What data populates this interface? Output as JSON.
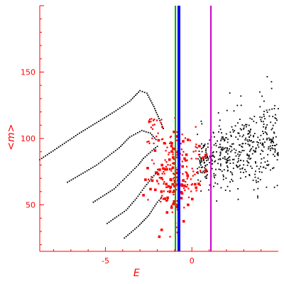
{
  "chart_data": {
    "type": "scatter",
    "title": "",
    "xlabel": "E",
    "ylabel": "<m>",
    "xlim": [
      -8.8,
      5.0
    ],
    "ylim": [
      15,
      200
    ],
    "x_ticks": [
      -5,
      0
    ],
    "y_ticks": [
      50,
      100,
      150
    ],
    "x_tick_labels": [
      "-5",
      "0"
    ],
    "y_tick_labels": [
      "50",
      "100",
      "150"
    ],
    "grid": false,
    "legend": "none",
    "colors": {
      "axes": "#ff0000",
      "black_points": "#000000",
      "red_points": "#ff0000",
      "vline_green": "#00aa00",
      "vline_blue": "#0000ff",
      "vline_magenta": "#cc00cc"
    },
    "vertical_lines": [
      {
        "x": -0.95,
        "color": "#00aa00"
      },
      {
        "x": -0.75,
        "color": "#0000ff"
      },
      {
        "x": 1.1,
        "color": "#cc00cc"
      }
    ],
    "black_bands": [
      {
        "points": [
          [
            -8.8,
            84
          ],
          [
            -6.5,
            104
          ],
          [
            -4.5,
            120
          ],
          [
            -3.6,
            128
          ],
          [
            -3.0,
            136
          ],
          [
            -2.6,
            134
          ],
          [
            -2.2,
            124
          ],
          [
            -1.8,
            112
          ],
          [
            -1.6,
            106
          ]
        ]
      },
      {
        "points": [
          [
            -7.2,
            67
          ],
          [
            -5.5,
            80
          ],
          [
            -4.2,
            93
          ],
          [
            -3.6,
            101
          ],
          [
            -2.9,
            106
          ],
          [
            -2.4,
            104
          ],
          [
            -2.0,
            98
          ]
        ]
      },
      {
        "points": [
          [
            -5.7,
            52
          ],
          [
            -4.5,
            62
          ],
          [
            -3.8,
            71
          ],
          [
            -3.1,
            80
          ],
          [
            -2.8,
            85
          ],
          [
            -2.2,
            92
          ],
          [
            -1.9,
            95
          ]
        ]
      },
      {
        "points": [
          [
            -4.9,
            36
          ],
          [
            -3.8,
            46
          ],
          [
            -3.2,
            55
          ],
          [
            -2.7,
            64
          ],
          [
            -2.2,
            72
          ],
          [
            -1.9,
            76
          ]
        ]
      },
      {
        "points": [
          [
            -3.9,
            25
          ],
          [
            -3.1,
            34
          ],
          [
            -2.5,
            42
          ],
          [
            -2.0,
            52
          ],
          [
            -1.7,
            56
          ]
        ]
      }
    ],
    "black_cloud": {
      "x_range": [
        0.3,
        5.0
      ],
      "y_center_left": 82,
      "y_center_right": 98,
      "y_spread_left": 18,
      "y_spread_right": 30,
      "count": 480
    },
    "red_cluster": {
      "x_range": [
        -2.8,
        0.8
      ],
      "y_range": [
        26,
        116
      ],
      "count": 230
    }
  }
}
